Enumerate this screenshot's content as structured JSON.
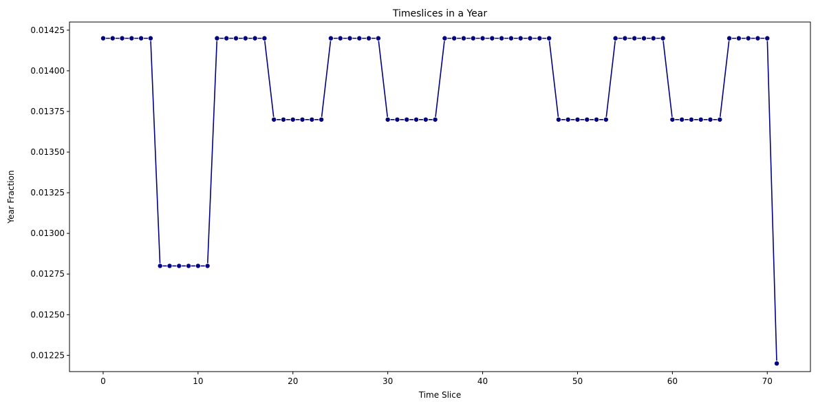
{
  "chart_data": {
    "type": "line",
    "title": "Timeslices in a Year",
    "xlabel": "Time Slice",
    "ylabel": "Year Fraction",
    "xlim": [
      -3.55,
      74.55
    ],
    "ylim": [
      0.01215,
      0.0143
    ],
    "xticks": [
      0,
      10,
      20,
      30,
      40,
      50,
      60,
      70
    ],
    "yticks": [
      0.01225,
      0.0125,
      0.01275,
      0.013,
      0.01325,
      0.0135,
      0.01375,
      0.014,
      0.01425
    ],
    "ytick_labels": [
      "0.01225",
      "0.01250",
      "0.01275",
      "0.01300",
      "0.01325",
      "0.01350",
      "0.01375",
      "0.01400",
      "0.01425"
    ],
    "grid": false,
    "line_color": "#000080",
    "marker": "circle",
    "series": [
      {
        "x": [
          0,
          1,
          2,
          3,
          4,
          5,
          6,
          7,
          8,
          9,
          10,
          11,
          12,
          13,
          14,
          15,
          16,
          17,
          18,
          19,
          20,
          21,
          22,
          23,
          24,
          25,
          26,
          27,
          28,
          29,
          30,
          31,
          32,
          33,
          34,
          35,
          36,
          37,
          38,
          39,
          40,
          41,
          42,
          43,
          44,
          45,
          46,
          47,
          48,
          49,
          50,
          51,
          52,
          53,
          54,
          55,
          56,
          57,
          58,
          59,
          60,
          61,
          62,
          63,
          64,
          65,
          66,
          67,
          68,
          69,
          70,
          71
        ],
        "values": [
          0.0142,
          0.0142,
          0.0142,
          0.0142,
          0.0142,
          0.0142,
          0.0128,
          0.0128,
          0.0128,
          0.0128,
          0.0128,
          0.0128,
          0.0142,
          0.0142,
          0.0142,
          0.0142,
          0.0142,
          0.0142,
          0.0137,
          0.0137,
          0.0137,
          0.0137,
          0.0137,
          0.0137,
          0.0142,
          0.0142,
          0.0142,
          0.0142,
          0.0142,
          0.0142,
          0.0137,
          0.0137,
          0.0137,
          0.0137,
          0.0137,
          0.0137,
          0.0142,
          0.0142,
          0.0142,
          0.0142,
          0.0142,
          0.0142,
          0.0142,
          0.0142,
          0.0142,
          0.0142,
          0.0142,
          0.0142,
          0.0137,
          0.0137,
          0.0137,
          0.0137,
          0.0137,
          0.0137,
          0.0142,
          0.0142,
          0.0142,
          0.0142,
          0.0142,
          0.0142,
          0.0137,
          0.0137,
          0.0137,
          0.0137,
          0.0137,
          0.0137,
          0.0142,
          0.0142,
          0.0142,
          0.0142,
          0.0142,
          0.0122
        ]
      }
    ]
  }
}
